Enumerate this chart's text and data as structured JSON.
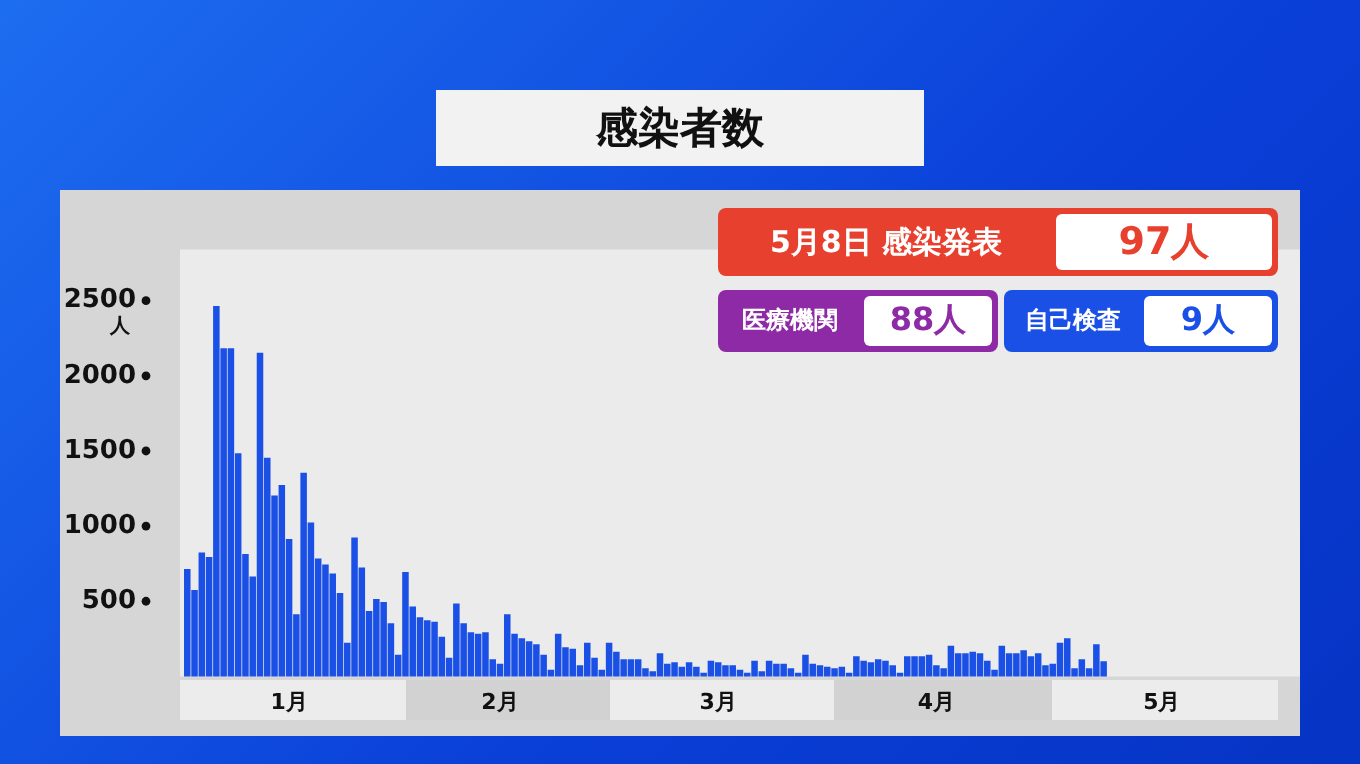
{
  "chart_data": {
    "type": "bar",
    "title": "感染者数",
    "ylabel": "人",
    "x": [
      "--01-02",
      "--01-03",
      "--01-04",
      "--01-05",
      "--01-06",
      "--01-07",
      "--01-08",
      "--01-09",
      "--01-10",
      "--01-11",
      "--01-12",
      "--01-13",
      "--01-14",
      "--01-15",
      "--01-16",
      "--01-17",
      "--01-18",
      "--01-19",
      "--01-20",
      "--01-21",
      "--01-22",
      "--01-23",
      "--01-24",
      "--01-25",
      "--01-26",
      "--01-27",
      "--01-28",
      "--01-29",
      "--01-30",
      "--01-31",
      "--02-01",
      "--02-02",
      "--02-03",
      "--02-04",
      "--02-05",
      "--02-06",
      "--02-07",
      "--02-08",
      "--02-09",
      "--02-10",
      "--02-11",
      "--02-12",
      "--02-13",
      "--02-14",
      "--02-15",
      "--02-16",
      "--02-17",
      "--02-18",
      "--02-19",
      "--02-20",
      "--02-21",
      "--02-22",
      "--02-23",
      "--02-24",
      "--02-25",
      "--02-26",
      "--02-27",
      "--02-28",
      "--03-01",
      "--03-02",
      "--03-03",
      "--03-04",
      "--03-05",
      "--03-06",
      "--03-07",
      "--03-08",
      "--03-09",
      "--03-10",
      "--03-11",
      "--03-12",
      "--03-13",
      "--03-14",
      "--03-15",
      "--03-16",
      "--03-17",
      "--03-18",
      "--03-19",
      "--03-20",
      "--03-21",
      "--03-22",
      "--03-23",
      "--03-24",
      "--03-25",
      "--03-26",
      "--03-27",
      "--03-28",
      "--03-29",
      "--03-30",
      "--03-31",
      "--04-01",
      "--04-02",
      "--04-03",
      "--04-04",
      "--04-05",
      "--04-06",
      "--04-07",
      "--04-08",
      "--04-09",
      "--04-10",
      "--04-11",
      "--04-12",
      "--04-13",
      "--04-14",
      "--04-15",
      "--04-16",
      "--04-17",
      "--04-18",
      "--04-19",
      "--04-20",
      "--04-21",
      "--04-22",
      "--04-23",
      "--04-24",
      "--04-25",
      "--04-26",
      "--04-27",
      "--04-28",
      "--04-29",
      "--04-30",
      "--05-01",
      "--05-02",
      "--05-03",
      "--05-04",
      "--05-05",
      "--05-06",
      "--05-07",
      "--05-08"
    ],
    "values": [
      710,
      570,
      820,
      790,
      2460,
      2180,
      2180,
      1480,
      810,
      660,
      2150,
      1450,
      1200,
      1270,
      910,
      410,
      1350,
      1020,
      780,
      740,
      680,
      550,
      220,
      920,
      720,
      430,
      510,
      490,
      350,
      140,
      690,
      460,
      390,
      370,
      360,
      260,
      120,
      480,
      350,
      290,
      280,
      290,
      110,
      80,
      410,
      280,
      250,
      230,
      210,
      140,
      40,
      280,
      190,
      180,
      70,
      220,
      120,
      40,
      220,
      160,
      110,
      110,
      110,
      50,
      30,
      150,
      80,
      90,
      60,
      90,
      60,
      20,
      100,
      90,
      70,
      70,
      40,
      20,
      100,
      30,
      100,
      80,
      80,
      50,
      20,
      140,
      80,
      70,
      60,
      50,
      60,
      20,
      130,
      100,
      90,
      110,
      100,
      70,
      20,
      130,
      130,
      130,
      140,
      70,
      50,
      200,
      150,
      150,
      160,
      150,
      100,
      40,
      200,
      150,
      150,
      170,
      130,
      150,
      70,
      80,
      220,
      250,
      50,
      110,
      50,
      210,
      97
    ],
    "color": "#1a50e6",
    "xlim": [
      "--01-01",
      "--06-04"
    ],
    "xticks": [
      {
        "value": "--01-16",
        "label": "1月"
      },
      {
        "value": "--02-14",
        "label": "2月"
      },
      {
        "value": "--03-16",
        "label": "3月"
      },
      {
        "value": "--04-15",
        "label": "4月"
      },
      {
        "value": "--05-16",
        "label": "5月"
      }
    ],
    "ylim": [
      0,
      2840
    ],
    "yticks": [
      500,
      1000,
      1500,
      2000,
      2500
    ],
    "annotations": [
      "5月8日 感染発表",
      "97人",
      "医療機関",
      "88人",
      "自己検査",
      "9人"
    ],
    "grid": false,
    "legend": false
  }
}
